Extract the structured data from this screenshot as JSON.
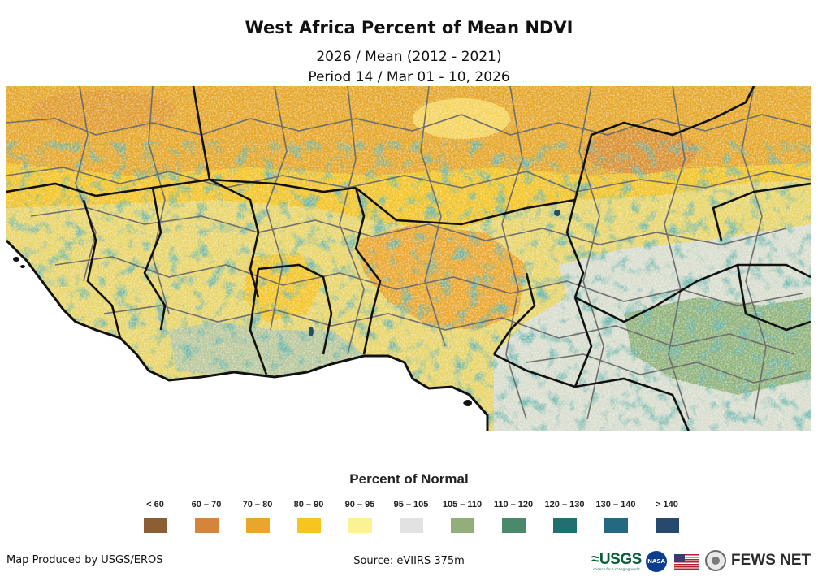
{
  "map": {
    "title": "West Africa Percent of Mean NDVI",
    "subtitle_line1": "2026 / Mean (2012 - 2021)",
    "subtitle_line2": "Period 14 / Mar 01 - 10, 2026"
  },
  "legend": {
    "title": "Percent of Normal",
    "classes": [
      {
        "label": "< 60",
        "color": "#8b5e34"
      },
      {
        "label": "60 – 70",
        "color": "#d3843d"
      },
      {
        "label": "70 – 80",
        "color": "#eaa62c"
      },
      {
        "label": "80 – 90",
        "color": "#f6c520"
      },
      {
        "label": "90 – 95",
        "color": "#fbf294"
      },
      {
        "label": "95 – 105",
        "color": "#e2e2e2"
      },
      {
        "label": "105 – 110",
        "color": "#93ae78"
      },
      {
        "label": "110 – 120",
        "color": "#4a8a6a"
      },
      {
        "label": "120 – 130",
        "color": "#226f70"
      },
      {
        "label": "130 – 140",
        "color": "#246980"
      },
      {
        "label": "> 140",
        "color": "#27496e"
      }
    ]
  },
  "footer": {
    "credit": "Map Produced by USGS/EROS",
    "source": "Source: eVIIRS 375m",
    "logos": {
      "usgs": "≈USGS",
      "usgs_tagline": "science for a changing world",
      "nasa": "NASA",
      "fews": "FEWS NET"
    }
  }
}
